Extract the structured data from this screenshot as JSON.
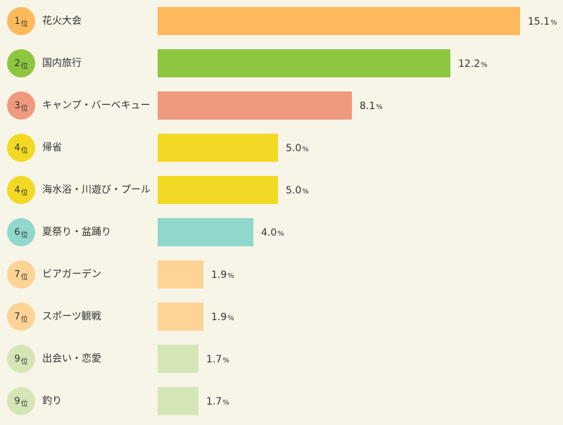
{
  "chart_data": {
    "type": "bar",
    "orientation": "horizontal",
    "rank_suffix": "位",
    "unit": "%",
    "xlim": [
      0,
      15.1
    ],
    "rows": [
      {
        "rank": "1",
        "category": "花火大会",
        "value": 15.1,
        "value_text": "15.1",
        "color": "#fdb95c"
      },
      {
        "rank": "2",
        "category": "国内旅行",
        "value": 12.2,
        "value_text": "12.2",
        "color": "#8dc63f"
      },
      {
        "rank": "3",
        "category": "キャンプ・バーベキュー",
        "value": 8.1,
        "value_text": "8.1",
        "color": "#ef9a7e"
      },
      {
        "rank": "4",
        "category": "帰省",
        "value": 5.0,
        "value_text": "5.0",
        "color": "#f2da24"
      },
      {
        "rank": "4",
        "category": "海水浴・川遊び・プール",
        "value": 5.0,
        "value_text": "5.0",
        "color": "#f2da24"
      },
      {
        "rank": "6",
        "category": "夏祭り・盆踊り",
        "value": 4.0,
        "value_text": "4.0",
        "color": "#8fd8cb"
      },
      {
        "rank": "7",
        "category": "ビアガーデン",
        "value": 1.9,
        "value_text": "1.9",
        "color": "#fdd396"
      },
      {
        "rank": "7",
        "category": "スポーツ観戦",
        "value": 1.9,
        "value_text": "1.9",
        "color": "#fdd396"
      },
      {
        "rank": "9",
        "category": "出会い・恋愛",
        "value": 1.7,
        "value_text": "1.7",
        "color": "#d5e6b6"
      },
      {
        "rank": "9",
        "category": "釣り",
        "value": 1.7,
        "value_text": "1.7",
        "color": "#d5e6b6"
      }
    ]
  }
}
